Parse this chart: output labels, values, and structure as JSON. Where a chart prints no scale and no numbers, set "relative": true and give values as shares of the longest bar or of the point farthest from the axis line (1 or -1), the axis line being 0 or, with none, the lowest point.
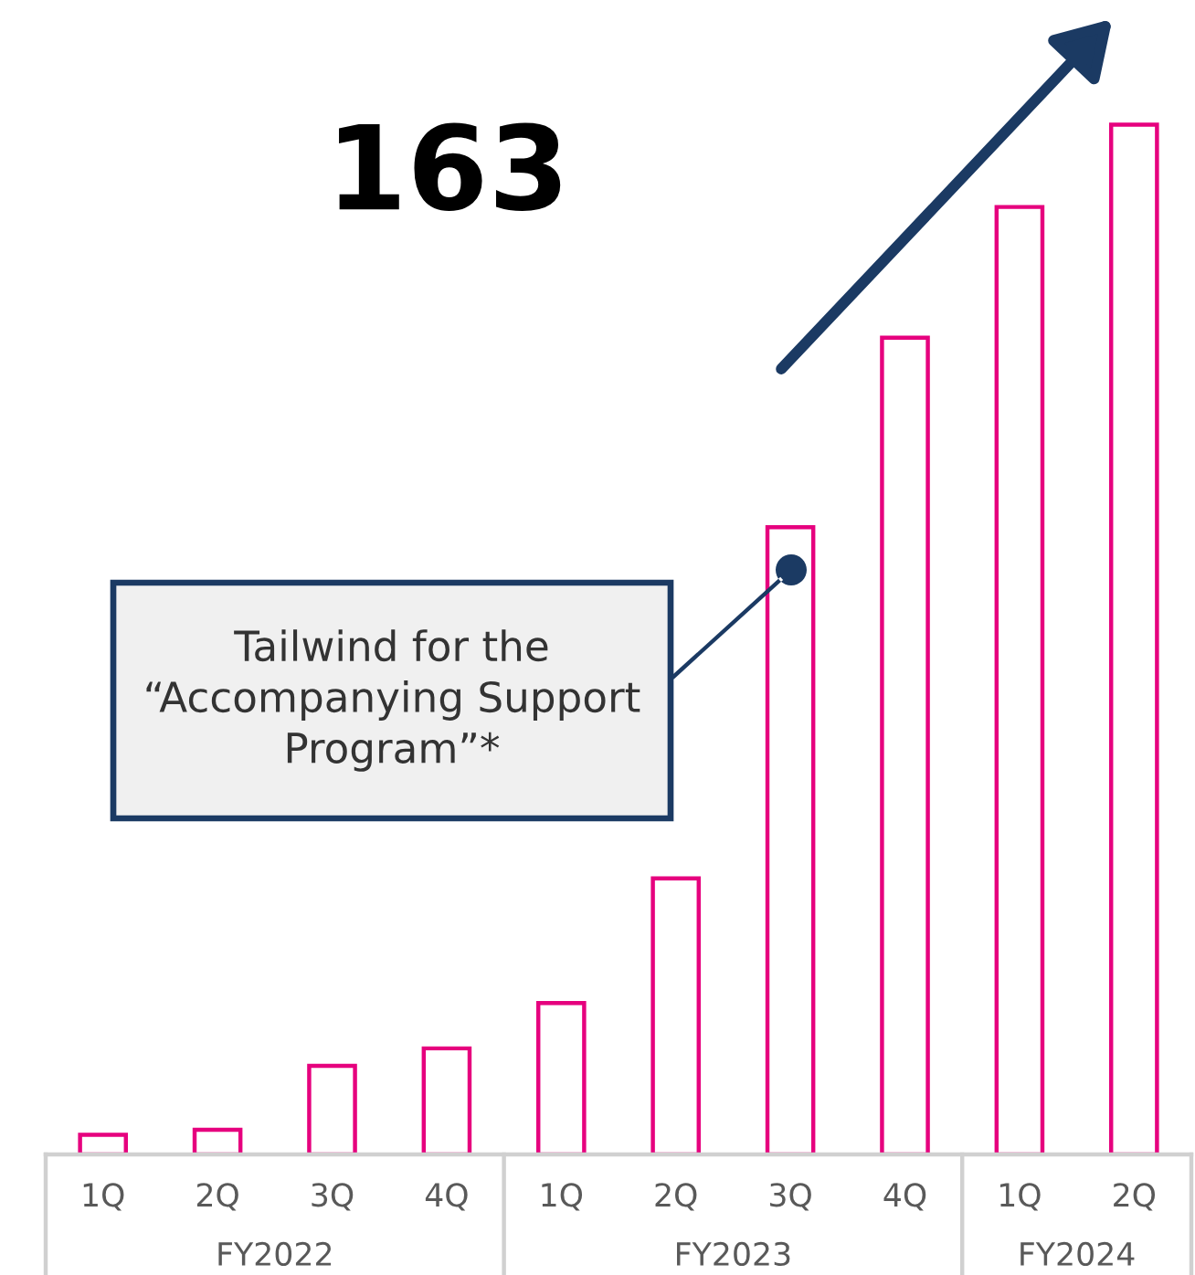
{
  "chart_data": {
    "type": "bar",
    "relative": true,
    "categories": [
      "1Q",
      "2Q",
      "3Q",
      "4Q",
      "1Q",
      "2Q",
      "3Q",
      "4Q",
      "1Q",
      "2Q"
    ],
    "values": [
      0.019,
      0.024,
      0.086,
      0.103,
      0.147,
      0.268,
      0.609,
      0.793,
      0.92,
      1
    ],
    "color": "#e6007e",
    "annotations": [
      "163",
      "Tailwind for the\n“Accompanying Support\nProgram”*",
      "FY2022",
      "FY2023",
      "FY2024"
    ]
  }
}
